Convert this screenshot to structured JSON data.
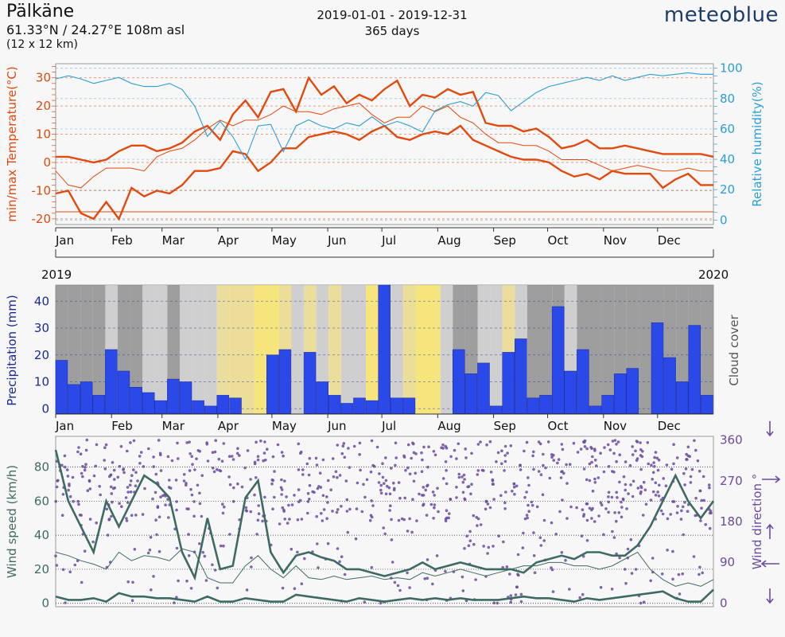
{
  "header": {
    "location": "Pälkäne",
    "coords": "61.33°N / 24.27°E   108m asl",
    "grid": "(12 x 12 km)",
    "date_range": "2019-01-01 - 2019-12-31",
    "days": "365 days",
    "brand": "meteoblue"
  },
  "colors": {
    "temperature": "#e24a0e",
    "humidity": "#2a9fd6",
    "precipitation": "#2a49e8",
    "cloud_clear": "#f4e266",
    "cloud_overcast": "#8e8e8e",
    "wind_speed": "#3d6b63",
    "wind_direction": "#6b4a9f"
  },
  "chart_data": [
    {
      "type": "line",
      "x": [
        "Jan 1",
        "Jan 8",
        "Jan 15",
        "Jan 22",
        "Jan 29",
        "Feb 5",
        "Feb 12",
        "Feb 19",
        "Feb 26",
        "Mar 5",
        "Mar 12",
        "Mar 19",
        "Mar 26",
        "Apr 2",
        "Apr 9",
        "Apr 16",
        "Apr 23",
        "Apr 30",
        "May 7",
        "May 14",
        "May 21",
        "May 28",
        "Jun 4",
        "Jun 11",
        "Jun 18",
        "Jun 25",
        "Jul 2",
        "Jul 9",
        "Jul 16",
        "Jul 23",
        "Jul 30",
        "Aug 6",
        "Aug 13",
        "Aug 20",
        "Aug 27",
        "Sep 3",
        "Sep 10",
        "Sep 17",
        "Sep 24",
        "Oct 1",
        "Oct 8",
        "Oct 15",
        "Oct 22",
        "Oct 29",
        "Nov 5",
        "Nov 12",
        "Nov 19",
        "Nov 26",
        "Dec 3",
        "Dec 10",
        "Dec 17",
        "Dec 24",
        "Dec 31"
      ],
      "series": [
        {
          "values": [
            2,
            2,
            1,
            0,
            1,
            4,
            6,
            6,
            4,
            5,
            7,
            11,
            13,
            8,
            17,
            22,
            16,
            25,
            26,
            18,
            30,
            24,
            27,
            21,
            24,
            22,
            26,
            29,
            20,
            24,
            23,
            26,
            24,
            25,
            14,
            13,
            13,
            11,
            12,
            9,
            5,
            6,
            8,
            5,
            5,
            6,
            5,
            4,
            3,
            3,
            3,
            3,
            2
          ],
          "role": "temperature_max"
        },
        {
          "values": [
            -3,
            -8,
            -9,
            -5,
            -2,
            -2,
            -2,
            -3,
            2,
            4,
            5,
            8,
            12,
            15,
            13,
            15,
            15,
            17,
            20,
            18,
            18,
            17,
            19,
            20,
            21,
            17,
            14,
            16,
            16,
            20,
            18,
            20,
            16,
            14,
            10,
            7,
            7,
            6,
            6,
            4,
            1,
            1,
            1,
            -1,
            -3,
            -2,
            -1,
            -2,
            -3,
            -3,
            -2,
            -3,
            -3
          ],
          "role": "temperature_mean"
        },
        {
          "values": [
            -11,
            -10,
            -18,
            -20,
            -14,
            -20,
            -9,
            -12,
            -10,
            -11,
            -8,
            -3,
            -3,
            -2,
            4,
            3,
            -3,
            0,
            5,
            5,
            9,
            10,
            11,
            10,
            8,
            11,
            13,
            9,
            8,
            10,
            11,
            10,
            13,
            8,
            6,
            4,
            2,
            1,
            1,
            0,
            -3,
            -5,
            -4,
            -6,
            -3,
            -4,
            -4,
            -4,
            -9,
            -6,
            -4,
            -8,
            -8
          ],
          "role": "temperature_min"
        },
        {
          "values": [
            93,
            95,
            93,
            90,
            92,
            94,
            90,
            88,
            88,
            90,
            86,
            75,
            55,
            65,
            55,
            40,
            62,
            63,
            45,
            62,
            66,
            62,
            60,
            64,
            62,
            68,
            62,
            65,
            62,
            58,
            72,
            76,
            78,
            75,
            84,
            82,
            72,
            78,
            84,
            88,
            90,
            92,
            94,
            92,
            95,
            92,
            94,
            96,
            95,
            96,
            97,
            96,
            96
          ],
          "role": "relative_humidity"
        }
      ],
      "ylabel": "min/max Temperature(°C)",
      "ylim": [
        -22,
        35
      ],
      "y_ticks": [
        "-20",
        "-10",
        "0",
        "10",
        "20",
        "30"
      ],
      "y2label": "Relative humidity(%)",
      "y2lim": [
        -3,
        103
      ],
      "y2_ticks": [
        "0",
        "20",
        "40",
        "60",
        "80",
        "100"
      ],
      "month_labels": [
        "Jan",
        "Feb",
        "Mar",
        "Apr",
        "May",
        "Jun",
        "Jul",
        "Aug",
        "Sep",
        "Oct",
        "Nov",
        "Dec"
      ],
      "year_start": "2019",
      "year_end": "2020"
    },
    {
      "type": "bar",
      "categories": [
        "Jan 1",
        "Jan 8",
        "Jan 15",
        "Jan 22",
        "Jan 29",
        "Feb 5",
        "Feb 12",
        "Feb 19",
        "Feb 26",
        "Mar 5",
        "Mar 12",
        "Mar 19",
        "Mar 26",
        "Apr 2",
        "Apr 9",
        "Apr 16",
        "Apr 23",
        "Apr 30",
        "May 7",
        "May 14",
        "May 21",
        "May 28",
        "Jun 4",
        "Jun 11",
        "Jun 18",
        "Jun 25",
        "Jul 2",
        "Jul 9",
        "Jul 16",
        "Jul 23",
        "Jul 30",
        "Aug 6",
        "Aug 13",
        "Aug 20",
        "Aug 27",
        "Sep 3",
        "Sep 10",
        "Sep 17",
        "Sep 24",
        "Oct 1",
        "Oct 8",
        "Oct 15",
        "Oct 22",
        "Oct 29",
        "Nov 5",
        "Nov 12",
        "Nov 19",
        "Nov 26",
        "Dec 3",
        "Dec 10",
        "Dec 17",
        "Dec 24",
        "Dec 31"
      ],
      "values": [
        18,
        9,
        10,
        5,
        22,
        14,
        8,
        6,
        3,
        11,
        10,
        3,
        1,
        5,
        4,
        0,
        0,
        20,
        22,
        0,
        21,
        10,
        5,
        2,
        4,
        3,
        46,
        4,
        4,
        0,
        0,
        0,
        22,
        13,
        17,
        1,
        21,
        26,
        4,
        5,
        38,
        14,
        22,
        1,
        5,
        13,
        15,
        0,
        32,
        19,
        10,
        31,
        5
      ],
      "ylabel": "Precipitation (mm)",
      "ylim": [
        -2,
        46
      ],
      "y_ticks": [
        "0",
        "10",
        "20",
        "30",
        "40"
      ],
      "y2label": "Cloud cover",
      "cloud_cover_pct": [
        80,
        85,
        75,
        90,
        70,
        80,
        85,
        70,
        60,
        75,
        55,
        60,
        65,
        40,
        50,
        45,
        30,
        20,
        35,
        60,
        50,
        55,
        45,
        60,
        70,
        30,
        25,
        65,
        35,
        20,
        15,
        55,
        80,
        75,
        70,
        60,
        50,
        65,
        75,
        85,
        80,
        70,
        85,
        90,
        85,
        80,
        90,
        95,
        90,
        85,
        80,
        95,
        90
      ],
      "month_labels": [
        "Jan",
        "Feb",
        "Mar",
        "Apr",
        "May",
        "Jun",
        "Jul",
        "Aug",
        "Sep",
        "Oct",
        "Nov",
        "Dec"
      ]
    },
    {
      "type": "line",
      "x": [
        "Jan 1",
        "Jan 8",
        "Jan 15",
        "Jan 22",
        "Jan 29",
        "Feb 5",
        "Feb 12",
        "Feb 19",
        "Feb 26",
        "Mar 5",
        "Mar 12",
        "Mar 19",
        "Mar 26",
        "Apr 2",
        "Apr 9",
        "Apr 16",
        "Apr 23",
        "Apr 30",
        "May 7",
        "May 14",
        "May 21",
        "May 28",
        "Jun 4",
        "Jun 11",
        "Jun 18",
        "Jun 25",
        "Jul 2",
        "Jul 9",
        "Jul 16",
        "Jul 23",
        "Jul 30",
        "Aug 6",
        "Aug 13",
        "Aug 20",
        "Aug 27",
        "Sep 3",
        "Sep 10",
        "Sep 17",
        "Sep 24",
        "Oct 1",
        "Oct 8",
        "Oct 15",
        "Oct 22",
        "Oct 29",
        "Nov 5",
        "Nov 12",
        "Nov 19",
        "Nov 26",
        "Dec 3",
        "Dec 10",
        "Dec 17",
        "Dec 24",
        "Dec 31"
      ],
      "series": [
        {
          "values": [
            90,
            60,
            45,
            30,
            60,
            45,
            60,
            75,
            70,
            62,
            30,
            15,
            50,
            20,
            22,
            62,
            72,
            30,
            18,
            28,
            30,
            27,
            25,
            20,
            20,
            18,
            16,
            18,
            20,
            24,
            20,
            22,
            24,
            22,
            20,
            20,
            20,
            18,
            24,
            26,
            28,
            26,
            30,
            30,
            28,
            28,
            34,
            45,
            60,
            75,
            60,
            50,
            60
          ],
          "role": "wind_max"
        },
        {
          "values": [
            30,
            28,
            25,
            23,
            20,
            30,
            25,
            28,
            27,
            25,
            32,
            30,
            15,
            12,
            12,
            22,
            28,
            20,
            15,
            22,
            15,
            14,
            16,
            14,
            15,
            16,
            14,
            15,
            14,
            18,
            16,
            18,
            20,
            18,
            16,
            18,
            20,
            22,
            22,
            24,
            24,
            22,
            22,
            20,
            22,
            26,
            30,
            20,
            14,
            10,
            12,
            10,
            14
          ],
          "role": "wind_mean"
        },
        {
          "values": [
            4,
            2,
            2,
            3,
            1,
            6,
            4,
            4,
            3,
            3,
            2,
            1,
            4,
            1,
            1,
            3,
            2,
            1,
            1,
            5,
            4,
            3,
            2,
            1,
            3,
            2,
            1,
            2,
            3,
            2,
            3,
            2,
            3,
            2,
            2,
            2,
            3,
            4,
            3,
            3,
            2,
            1,
            3,
            2,
            3,
            4,
            5,
            6,
            7,
            3,
            1,
            1,
            8
          ],
          "role": "wind_min"
        }
      ],
      "ylabel": "Wind speed (km/h)",
      "ylim": [
        -2,
        98
      ],
      "y_ticks": [
        "0",
        "20",
        "40",
        "60",
        "80"
      ],
      "y2label": "Wind direction °",
      "y2lim": [
        -8,
        368
      ],
      "y2_ticks": [
        "0",
        "90",
        "180",
        "270",
        "360"
      ],
      "month_labels": [
        "Jan",
        "Feb",
        "Mar",
        "Apr",
        "May",
        "Jun",
        "Jul",
        "Aug",
        "Sep",
        "Oct",
        "Nov",
        "Dec"
      ]
    }
  ]
}
